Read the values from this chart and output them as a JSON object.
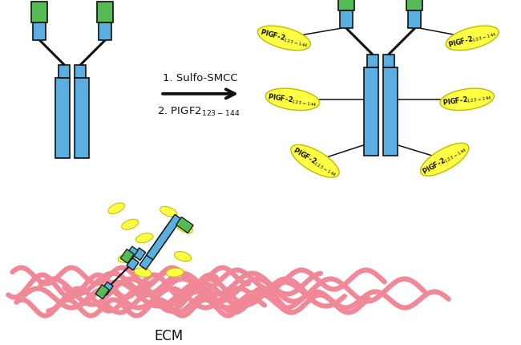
{
  "bg_color": "#ffffff",
  "blue_color": "#5aafe0",
  "green_color": "#55bb55",
  "yellow_color": "#ffff44",
  "yellow_edge": "#bbbb00",
  "pink_color": "#f08898",
  "black": "#111111",
  "step1_text": "1. Sulfo-SMCC",
  "step2_text": "2. PIGF2",
  "step2_sub": "123-144",
  "ecm_label": "ECM",
  "pigf_main": "PlGF-2",
  "pigf_sub": "123-144"
}
